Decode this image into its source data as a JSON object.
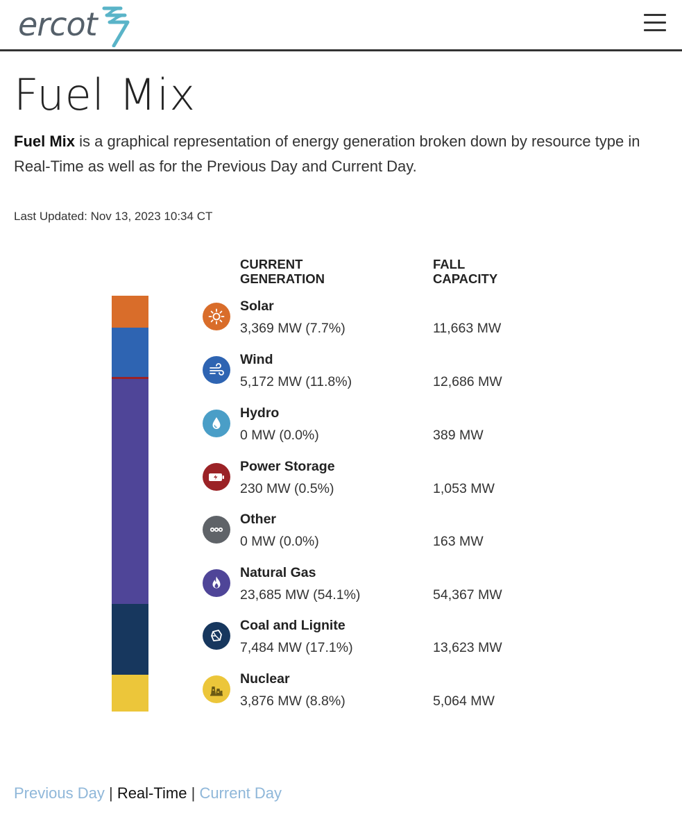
{
  "header": {
    "logo_text": "ercot",
    "brand_color": "#5ab4c8"
  },
  "page": {
    "title": "Fuel Mix",
    "intro_bold": "Fuel Mix",
    "intro_text": " is a graphical representation of energy generation broken down by resource type in Real-Time as well as for the Previous Day and Current Day.",
    "last_updated": "Last Updated: Nov 13, 2023 10:34 CT"
  },
  "table": {
    "gen_header_line1": "CURRENT",
    "gen_header_line2": "GENERATION",
    "cap_header_line1": "FALL",
    "cap_header_line2": "CAPACITY"
  },
  "fuels": [
    {
      "name": "Solar",
      "generation": "3,369 MW (7.7%)",
      "capacity": "11,663 MW",
      "color": "#d96d2a",
      "icon": "sun-icon",
      "share": 7.7
    },
    {
      "name": "Wind",
      "generation": "5,172 MW (11.8%)",
      "capacity": "12,686 MW",
      "color": "#2e64b2",
      "icon": "wind-icon",
      "share": 11.8
    },
    {
      "name": "Hydro",
      "generation": "0 MW (0.0%)",
      "capacity": "389 MW",
      "color": "#4a9ec7",
      "icon": "water-drop-icon",
      "share": 0.0
    },
    {
      "name": "Power Storage",
      "generation": "230 MW (0.5%)",
      "capacity": "1,053 MW",
      "color": "#9b2226",
      "icon": "battery-icon",
      "share": 0.5
    },
    {
      "name": "Other",
      "generation": "0 MW (0.0%)",
      "capacity": "163 MW",
      "color": "#5f6368",
      "icon": "more-dots-icon",
      "share": 0.0
    },
    {
      "name": "Natural Gas",
      "generation": "23,685 MW (54.1%)",
      "capacity": "54,367 MW",
      "color": "#4f4598",
      "icon": "flame-icon",
      "share": 54.1
    },
    {
      "name": "Coal and Lignite",
      "generation": "7,484 MW (17.1%)",
      "capacity": "13,623 MW",
      "color": "#17375e",
      "icon": "coal-icon",
      "share": 17.1
    },
    {
      "name": "Nuclear",
      "generation": "3,876 MW (8.8%)",
      "capacity": "5,064 MW",
      "color": "#ecc63a",
      "icon": "nuclear-plant-icon",
      "share": 8.8
    }
  ],
  "tabs": {
    "previous_day": "Previous Day",
    "real_time": "Real-Time",
    "current_day": "Current Day",
    "separator": "|"
  }
}
